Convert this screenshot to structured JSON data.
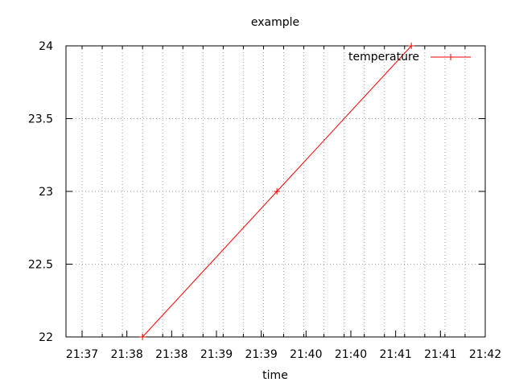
{
  "chart_data": {
    "type": "line",
    "title": "example",
    "xlabel": "time",
    "ylabel": "",
    "x_tick_labels": [
      "21:37",
      "21:38",
      "21:38",
      "21:39",
      "21:39",
      "21:40",
      "21:40",
      "21:41",
      "21:41",
      "21:42"
    ],
    "y_tick_labels": [
      "22",
      "22.5",
      "23",
      "23.5",
      "24"
    ],
    "ylim": [
      22,
      24
    ],
    "grid": true,
    "legend_position": "top-right",
    "series": [
      {
        "name": "temperature",
        "color": "#ff0000",
        "marker": "plus",
        "points": [
          {
            "x": "21:37:45",
            "y": 22
          },
          {
            "x": "21:39:25",
            "y": 23
          },
          {
            "x": "21:41:05",
            "y": 24
          }
        ]
      }
    ]
  }
}
